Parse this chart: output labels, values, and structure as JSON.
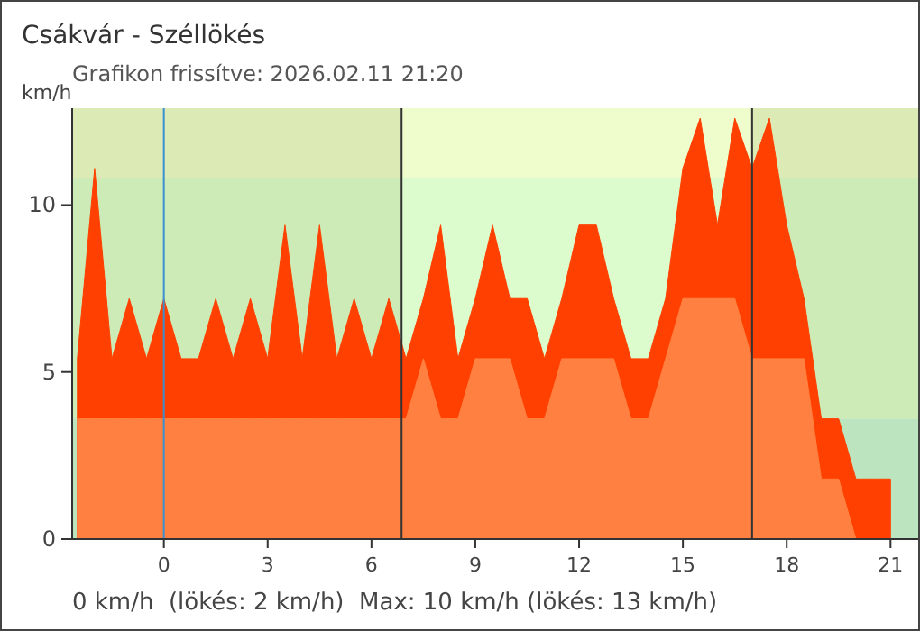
{
  "chart_data": {
    "type": "area",
    "title": "Csákvár - Széllökés",
    "subtitle": "Grafikon frissítve: 2026.02.11 21:20",
    "ylabel": "km/h",
    "x": [
      -2.5,
      -2,
      -1.5,
      -1,
      -0.5,
      0,
      0.5,
      1,
      1.5,
      2,
      2.5,
      3,
      3.5,
      4,
      4.5,
      5,
      5.5,
      6,
      6.5,
      7,
      7.5,
      8,
      8.5,
      9,
      9.5,
      10,
      10.5,
      11,
      11.5,
      12,
      12.5,
      13,
      13.5,
      14,
      14.5,
      15,
      15.5,
      16,
      16.5,
      17,
      17.5,
      18,
      18.5,
      19,
      19.5,
      20,
      20.5,
      21
    ],
    "series": [
      {
        "color": "#ff4000",
        "values": [
          5.4,
          11.1,
          5.4,
          7.2,
          5.4,
          7.2,
          5.4,
          5.4,
          7.2,
          5.4,
          7.2,
          5.4,
          9.4,
          5.4,
          9.4,
          5.4,
          7.2,
          5.4,
          7.2,
          5.4,
          7.2,
          9.4,
          5.4,
          7.2,
          9.4,
          7.2,
          7.2,
          5.4,
          7.2,
          9.4,
          9.4,
          7.2,
          5.4,
          5.4,
          7.2,
          11.1,
          12.6,
          9.4,
          12.6,
          11.1,
          12.6,
          9.4,
          7.2,
          3.6,
          3.6,
          1.8,
          1.8,
          1.8
        ]
      },
      {
        "color": "#ff8040",
        "values": [
          3.6,
          3.6,
          3.6,
          3.6,
          3.6,
          3.6,
          3.6,
          3.6,
          3.6,
          3.6,
          3.6,
          3.6,
          3.6,
          3.6,
          3.6,
          3.6,
          3.6,
          3.6,
          3.6,
          3.6,
          5.4,
          3.6,
          3.6,
          5.4,
          5.4,
          5.4,
          3.6,
          3.6,
          5.4,
          5.4,
          5.4,
          5.4,
          3.6,
          3.6,
          5.4,
          7.2,
          7.2,
          7.2,
          7.2,
          5.4,
          5.4,
          5.4,
          5.4,
          1.8,
          1.8,
          0,
          0,
          0
        ]
      }
    ],
    "xlim": [
      -2.65,
      21.8
    ],
    "xticks": [
      0,
      3,
      6,
      9,
      12,
      15,
      18,
      21
    ],
    "ylim": [
      0,
      12.9
    ],
    "yticks": [
      0,
      5,
      10
    ],
    "grid": false,
    "bands": [
      {
        "axis": "y",
        "from": 10.8,
        "to": 12.9,
        "color": "#effccc"
      },
      {
        "axis": "y",
        "from": 3.6,
        "to": 10.8,
        "color": "#ddfccd"
      },
      {
        "axis": "y",
        "from": 0,
        "to": 3.6,
        "color": "#c9f5d6"
      },
      {
        "axis": "x",
        "from": -2.65,
        "to": 6.87,
        "color": "#6f8a3a"
      },
      {
        "axis": "x",
        "from": 17.0,
        "to": 21.8,
        "color": "#6f8a3a"
      }
    ],
    "ref_lines": [
      {
        "axis": "x",
        "value": 0,
        "color": "#3a8fd0"
      },
      {
        "axis": "x",
        "value": 6.87,
        "color": "#333333"
      },
      {
        "axis": "x",
        "value": 17.0,
        "color": "#333333"
      }
    ],
    "annotations": [
      "0 km/h  (lökés: 2 km/h)  Max: 10 km/h (lökés: 13 km/h)"
    ]
  }
}
